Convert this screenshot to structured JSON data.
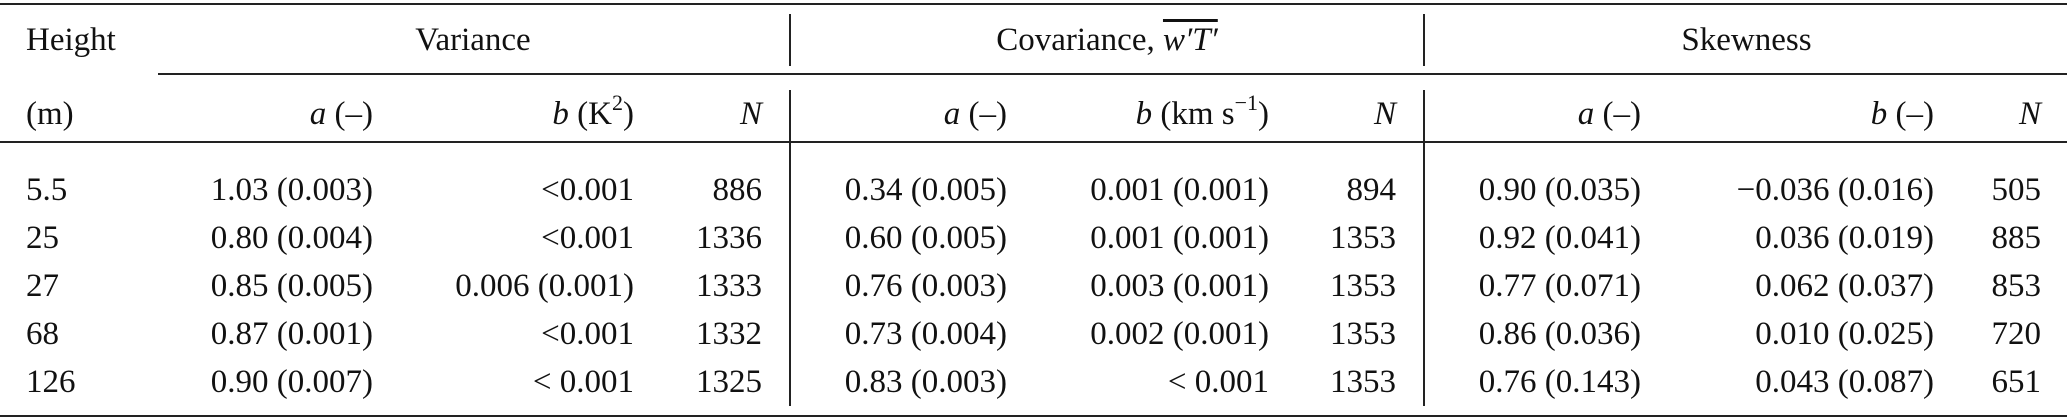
{
  "header": {
    "height_label": "Height",
    "height_unit": "(m)",
    "groups": [
      {
        "label": "Variance",
        "overline": ""
      },
      {
        "label": "Covariance, ",
        "overline": "w′T′"
      },
      {
        "label": "Skewness",
        "overline": ""
      }
    ],
    "sub": {
      "variance": [
        {
          "sym": "a",
          "unit": " (–)",
          "sup": ""
        },
        {
          "sym": "b",
          "unit": " (K",
          "sup": "2",
          "close": ")"
        },
        {
          "sym": "N",
          "unit": "",
          "sup": ""
        }
      ],
      "covariance": [
        {
          "sym": "a",
          "unit": " (–)",
          "sup": ""
        },
        {
          "sym": "b",
          "unit": " (km s",
          "sup": "−1",
          "close": ")"
        },
        {
          "sym": "N",
          "unit": "",
          "sup": ""
        }
      ],
      "skewness": [
        {
          "sym": "a",
          "unit": " (–)",
          "sup": ""
        },
        {
          "sym": "b",
          "unit": " (–)",
          "sup": ""
        },
        {
          "sym": "N",
          "unit": "",
          "sup": ""
        }
      ]
    }
  },
  "rows": [
    {
      "height": "5.5",
      "var_a": "1.03 (0.003)",
      "var_b": "<0.001",
      "var_n": "886",
      "cov_a": "0.34 (0.005)",
      "cov_b": "0.001 (0.001)",
      "cov_n": "894",
      "skw_a": "0.90 (0.035)",
      "skw_b": "−0.036 (0.016)",
      "skw_n": "505"
    },
    {
      "height": "25",
      "var_a": "0.80 (0.004)",
      "var_b": "<0.001",
      "var_n": "1336",
      "cov_a": "0.60 (0.005)",
      "cov_b": "0.001 (0.001)",
      "cov_n": "1353",
      "skw_a": "0.92 (0.041)",
      "skw_b": "0.036 (0.019)",
      "skw_n": "885"
    },
    {
      "height": "27",
      "var_a": "0.85 (0.005)",
      "var_b": "0.006 (0.001)",
      "var_n": "1333",
      "cov_a": "0.76 (0.003)",
      "cov_b": "0.003 (0.001)",
      "cov_n": "1353",
      "skw_a": "0.77 (0.071)",
      "skw_b": "0.062 (0.037)",
      "skw_n": "853"
    },
    {
      "height": "68",
      "var_a": "0.87 (0.001)",
      "var_b": "<0.001",
      "var_n": "1332",
      "cov_a": "0.73 (0.004)",
      "cov_b": "0.002 (0.001)",
      "cov_n": "1353",
      "skw_a": "0.86 (0.036)",
      "skw_b": "0.010 (0.025)",
      "skw_n": "720"
    },
    {
      "height": "126",
      "var_a": "0.90 (0.007)",
      "var_b": "< 0.001",
      "var_n": "1325",
      "cov_a": "0.83 (0.003)",
      "cov_b": "< 0.001",
      "cov_n": "1353",
      "skw_a": "0.76 (0.143)",
      "skw_b": "0.043 (0.087)",
      "skw_n": "651"
    }
  ]
}
